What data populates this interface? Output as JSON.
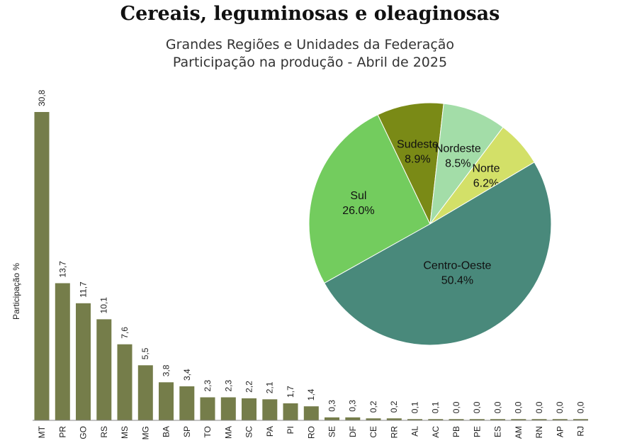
{
  "title": "Cereais, leguminosas e oleaginosas",
  "subtitle_line1": "Grandes Regiões e Unidades da Federação",
  "subtitle_line2": "Participação na produção - Abril de 2025",
  "chart_data": [
    {
      "type": "bar",
      "ylabel": "Participação %",
      "xlabel": "",
      "ylim": [
        0,
        30.8
      ],
      "categories": [
        "MT",
        "PR",
        "GO",
        "RS",
        "MS",
        "MG",
        "BA",
        "SP",
        "TO",
        "MA",
        "SC",
        "PA",
        "PI",
        "RO",
        "SE",
        "DF",
        "CE",
        "RR",
        "AL",
        "AC",
        "PB",
        "PE",
        "ES",
        "AM",
        "RN",
        "AP",
        "RJ"
      ],
      "values": [
        30.8,
        13.7,
        11.7,
        10.1,
        7.6,
        5.5,
        3.8,
        3.4,
        2.3,
        2.3,
        2.2,
        2.1,
        1.7,
        1.4,
        0.3,
        0.3,
        0.2,
        0.2,
        0.1,
        0.1,
        0.0,
        0.0,
        0.0,
        0.0,
        0.0,
        0.0,
        0.0
      ],
      "value_labels": [
        "30,8",
        "13,7",
        "11,7",
        "10,1",
        "7,6",
        "5,5",
        "3,8",
        "3,4",
        "2,3",
        "2,3",
        "2,2",
        "2,1",
        "1,7",
        "1,4",
        "0,3",
        "0,3",
        "0,2",
        "0,2",
        "0,1",
        "0,1",
        "0,0",
        "0,0",
        "0,0",
        "0,0",
        "0,0",
        "0,0",
        "0,0"
      ],
      "bar_color": "#757d4a"
    },
    {
      "type": "pie",
      "slices": [
        {
          "name": "Sul",
          "value": 26.0,
          "label": "26.0%",
          "color": "#73cc5e"
        },
        {
          "name": "Sudeste",
          "value": 8.9,
          "label": "8.9%",
          "color": "#7a8a16"
        },
        {
          "name": "Nordeste",
          "value": 8.5,
          "label": "8.5%",
          "color": "#a3dda8"
        },
        {
          "name": "Norte",
          "value": 6.2,
          "label": "6.2%",
          "color": "#d3e068"
        },
        {
          "name": "Centro-Oeste",
          "value": 50.4,
          "label": "50.4%",
          "color": "#49897b"
        }
      ]
    }
  ]
}
